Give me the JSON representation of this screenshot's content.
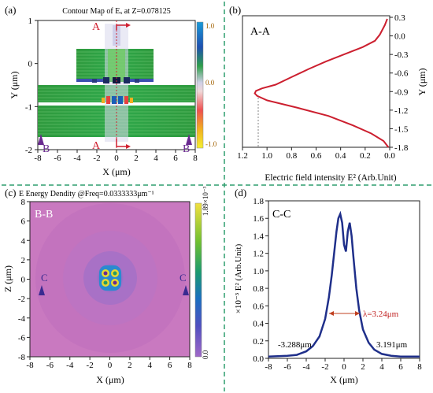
{
  "dividers": {
    "color": "#2e9d6e"
  },
  "chart_data": [
    {
      "panel": "a",
      "panel_label": "(a)",
      "type": "heatmap",
      "title": "Contour Map of Eₓ at Z=0.078125",
      "xlabel": "X (μm)",
      "ylabel": "Y (μm)",
      "xlim": [
        -8,
        8
      ],
      "ylim": [
        -2,
        1
      ],
      "x_ticks": [
        "-8",
        "-6",
        "-4",
        "-2",
        "0",
        "2",
        "4",
        "6",
        "8"
      ],
      "y_ticks": [
        "1",
        "0",
        "-1",
        "-2"
      ],
      "colorbar_ticks": [
        "1.0",
        "0.0",
        "-1.0"
      ],
      "markers": {
        "top": "A",
        "bottom_center": "A",
        "bottom_left": "B",
        "bottom_right": "B"
      }
    },
    {
      "panel": "b",
      "panel_label": "(b)",
      "type": "line",
      "annotation": "A-A",
      "xlabel": "Electric field intensity  E² (Arb.Unit)",
      "ylabel": "Y (μm)",
      "xlim": [
        1.2,
        0.0
      ],
      "ylim": [
        -1.8,
        0.3
      ],
      "x_ticks": [
        "1.2",
        "1.0",
        "0.8",
        "0.6",
        "0.4",
        "0.2",
        "0.0"
      ],
      "y_ticks": [
        "0.3",
        "0.0",
        "-0.3",
        "-0.6",
        "-0.9",
        "-1.2",
        "-1.5",
        "-1.8"
      ],
      "color": "#cc1f2f",
      "x": [
        0.02,
        0.04,
        0.08,
        0.12,
        0.22,
        0.35,
        0.52,
        0.66,
        0.8,
        0.93,
        1.04,
        1.09,
        1.1,
        1.08,
        1.0,
        0.75,
        0.5,
        0.3,
        0.15,
        0.05,
        0.01
      ],
      "y": [
        0.25,
        0.15,
        0.0,
        -0.1,
        -0.2,
        -0.3,
        -0.43,
        -0.55,
        -0.68,
        -0.8,
        -0.86,
        -0.9,
        -0.94,
        -0.98,
        -1.05,
        -1.17,
        -1.3,
        -1.45,
        -1.58,
        -1.7,
        -1.8
      ]
    },
    {
      "panel": "c",
      "panel_label": "(c)",
      "type": "heatmap",
      "title": "E Energy Dendity @Freq=0.0333333μm⁻¹",
      "annotation": "B-B",
      "xlabel": "X (μm)",
      "ylabel": "Z (μm)",
      "xlim": [
        -8,
        8
      ],
      "ylim": [
        -8,
        8
      ],
      "x_ticks": [
        "-8",
        "-6",
        "-4",
        "-2",
        "0",
        "2",
        "4",
        "6",
        "8"
      ],
      "y_ticks": [
        "8",
        "6",
        "4",
        "2",
        "0",
        "-2",
        "-4",
        "-6",
        "-8"
      ],
      "colorbar_ticks": [
        "1.89×10⁻³",
        "0.0"
      ],
      "markers": {
        "left": "C",
        "right": "C"
      }
    },
    {
      "panel": "d",
      "panel_label": "(d)",
      "type": "line",
      "annotation": "C-C",
      "xlabel": "X (μm)",
      "ylabel": "×10⁻³ E² (Arb.Unit)",
      "xlim": [
        -8,
        8
      ],
      "ylim": [
        0,
        1.8
      ],
      "x_ticks": [
        "-8",
        "-6",
        "-4",
        "-2",
        "0",
        "2",
        "4",
        "6",
        "8"
      ],
      "y_ticks": [
        "1.8",
        "1.6",
        "1.4",
        "1.2",
        "1.0",
        "0.8",
        "0.6",
        "0.4",
        "0.2",
        "0.0"
      ],
      "color": "#1f2f8a",
      "x": [
        -8,
        -6,
        -5,
        -4,
        -3.3,
        -2.6,
        -2,
        -1.6,
        -1.3,
        -1,
        -0.8,
        -0.6,
        -0.4,
        -0.2,
        0,
        0.2,
        0.4,
        0.6,
        0.8,
        1,
        1.3,
        1.6,
        2,
        2.6,
        3.2,
        4,
        5,
        6,
        8
      ],
      "y": [
        0.02,
        0.03,
        0.04,
        0.08,
        0.14,
        0.25,
        0.45,
        0.7,
        0.95,
        1.25,
        1.45,
        1.6,
        1.65,
        1.55,
        1.3,
        1.22,
        1.45,
        1.55,
        1.4,
        1.15,
        0.8,
        0.55,
        0.33,
        0.18,
        0.1,
        0.05,
        0.03,
        0.02,
        0.02
      ],
      "annotations": {
        "fwhm": "λ=3.24μm",
        "left": "-3.288μm",
        "right": "3.191μm"
      }
    }
  ]
}
